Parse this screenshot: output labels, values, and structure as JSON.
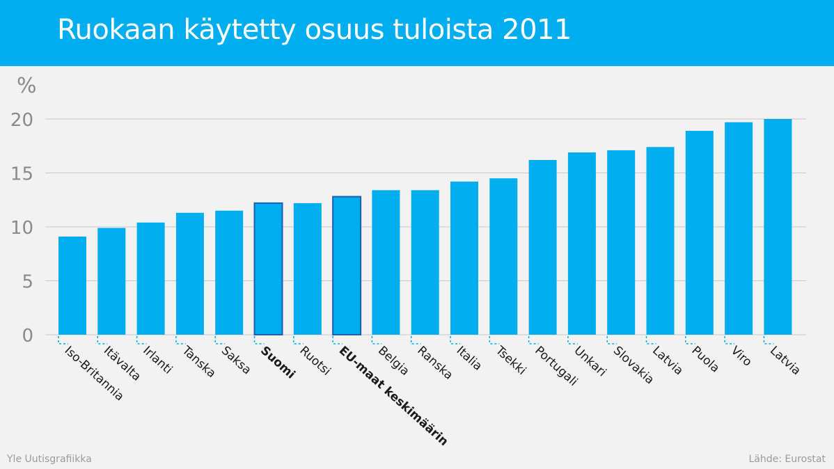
{
  "header": {
    "title": "Ruokaan käytetty osuus tuloista 2011"
  },
  "footer": {
    "credit": "Yle Uutisgrafiikka",
    "source": "Lähde: Eurostat"
  },
  "colors": {
    "bar": "#00adef",
    "bar_highlight_stroke": "#1a5fb4",
    "grid": "#c8c8c8",
    "axis_text": "#8a8a8a",
    "label_text": "#1a1a1a",
    "header_bg": "#00adef"
  },
  "chart_data": {
    "type": "bar",
    "title": "Ruokaan käytetty osuus tuloista 2011",
    "ylabel": "%",
    "xlabel": "",
    "ylim": [
      0,
      20
    ],
    "yticks": [
      0,
      5,
      10,
      15,
      20
    ],
    "grid": true,
    "categories": [
      "Iso-Britannia",
      "Itävalta",
      "Irlanti",
      "Tanska",
      "Saksa",
      "Suomi",
      "Ruotsi",
      "EU-maat keskimäärin",
      "Belgia",
      "Ranska",
      "Italia",
      "Tsekki",
      "Portugali",
      "Unkari",
      "Slovakia",
      "Latvia",
      "Puola",
      "Viro",
      "Latvia"
    ],
    "values": [
      9.1,
      9.9,
      10.4,
      11.3,
      11.5,
      12.2,
      12.2,
      12.8,
      13.4,
      13.4,
      14.2,
      14.5,
      16.2,
      16.9,
      17.1,
      17.4,
      18.9,
      19.7,
      20.0
    ],
    "highlighted": [
      "Suomi",
      "EU-maat keskimäärin"
    ]
  }
}
